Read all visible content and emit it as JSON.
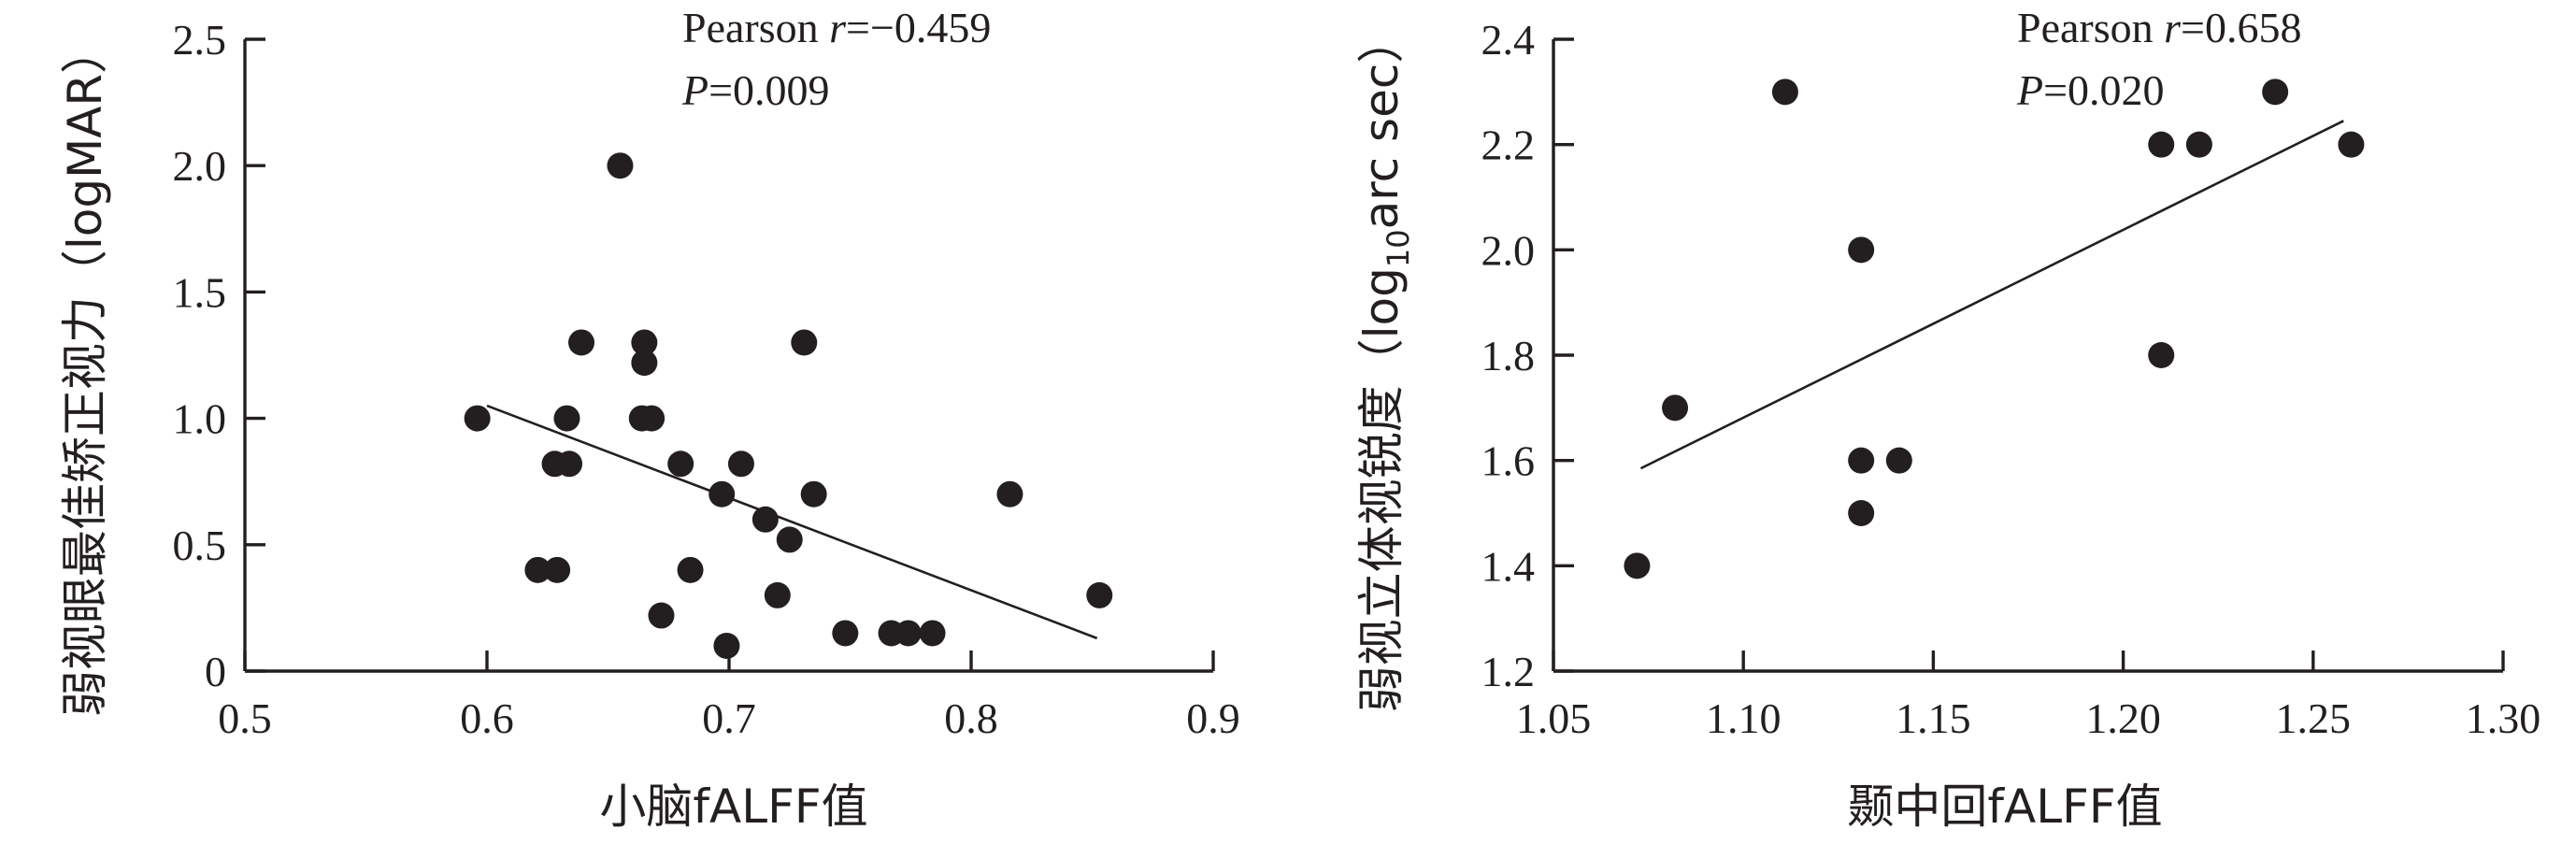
{
  "chart_data": [
    {
      "type": "scatter",
      "xlabel": "小脑fALFF值",
      "ylabel": "弱视眼最佳矫正视力（logMAR）",
      "xlim": [
        0.5,
        0.9
      ],
      "ylim": [
        0,
        2.5
      ],
      "x_ticks": [
        "0.5",
        "0.6",
        "0.7",
        "0.8",
        "0.9"
      ],
      "y_ticks": [
        "0",
        "0.5",
        "1.0",
        "1.5",
        "2.0",
        "2.5"
      ],
      "annotation": {
        "line1_prefix": "Pearson ",
        "line1_var": "r",
        "line1_value": "=−0.459",
        "line2_var": "P",
        "line2_value": "=0.009"
      },
      "points": [
        {
          "x": 0.596,
          "y": 1.0
        },
        {
          "x": 0.621,
          "y": 0.4
        },
        {
          "x": 0.629,
          "y": 0.4
        },
        {
          "x": 0.628,
          "y": 0.82
        },
        {
          "x": 0.633,
          "y": 1.0
        },
        {
          "x": 0.634,
          "y": 0.82
        },
        {
          "x": 0.639,
          "y": 1.3
        },
        {
          "x": 0.655,
          "y": 2.0
        },
        {
          "x": 0.664,
          "y": 1.0
        },
        {
          "x": 0.665,
          "y": 1.3
        },
        {
          "x": 0.665,
          "y": 1.22
        },
        {
          "x": 0.668,
          "y": 1.0
        },
        {
          "x": 0.672,
          "y": 0.22
        },
        {
          "x": 0.68,
          "y": 0.82
        },
        {
          "x": 0.684,
          "y": 0.4
        },
        {
          "x": 0.697,
          "y": 0.7
        },
        {
          "x": 0.699,
          "y": 0.1
        },
        {
          "x": 0.705,
          "y": 0.82
        },
        {
          "x": 0.715,
          "y": 0.6
        },
        {
          "x": 0.72,
          "y": 0.3
        },
        {
          "x": 0.725,
          "y": 0.52
        },
        {
          "x": 0.731,
          "y": 1.3
        },
        {
          "x": 0.735,
          "y": 0.7
        },
        {
          "x": 0.748,
          "y": 0.15
        },
        {
          "x": 0.767,
          "y": 0.15
        },
        {
          "x": 0.774,
          "y": 0.15
        },
        {
          "x": 0.784,
          "y": 0.15
        },
        {
          "x": 0.816,
          "y": 0.7
        },
        {
          "x": 0.853,
          "y": 0.3
        }
      ],
      "fit_line": {
        "x": [
          0.6,
          0.852
        ],
        "y": [
          1.05,
          0.13
        ]
      }
    },
    {
      "type": "scatter",
      "xlabel": "颞中回fALFF值",
      "ylabel_prefix": "弱视立体视锐度（log",
      "ylabel_sub": "10",
      "ylabel_suffix": "arc sec）",
      "xlim": [
        1.05,
        1.3
      ],
      "ylim": [
        1.2,
        2.4
      ],
      "x_ticks": [
        "1.05",
        "1.10",
        "1.15",
        "1.20",
        "1.25",
        "1.30"
      ],
      "y_ticks": [
        "1.2",
        "1.4",
        "1.6",
        "1.8",
        "2.0",
        "2.2",
        "2.4"
      ],
      "annotation": {
        "line1_prefix": "Pearson ",
        "line1_var": "r",
        "line1_value": "=0.658",
        "line2_var": "P",
        "line2_value": "=0.020"
      },
      "points": [
        {
          "x": 1.072,
          "y": 1.4
        },
        {
          "x": 1.082,
          "y": 1.7
        },
        {
          "x": 1.111,
          "y": 2.3
        },
        {
          "x": 1.131,
          "y": 2.0
        },
        {
          "x": 1.131,
          "y": 1.6
        },
        {
          "x": 1.131,
          "y": 1.5
        },
        {
          "x": 1.141,
          "y": 1.6
        },
        {
          "x": 1.21,
          "y": 2.2
        },
        {
          "x": 1.21,
          "y": 1.8
        },
        {
          "x": 1.22,
          "y": 2.2
        },
        {
          "x": 1.24,
          "y": 2.3
        },
        {
          "x": 1.26,
          "y": 2.2
        }
      ],
      "fit_line": {
        "x": [
          1.073,
          1.258
        ],
        "y": [
          1.585,
          2.245
        ]
      }
    }
  ]
}
